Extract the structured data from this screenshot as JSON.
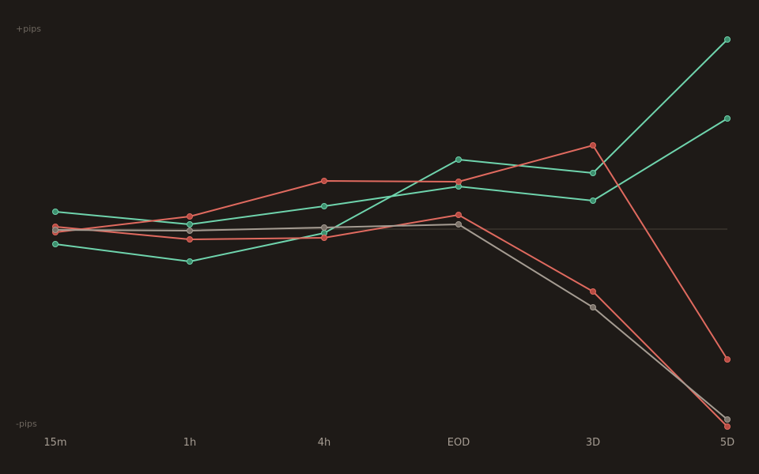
{
  "chart_data": {
    "type": "line",
    "y_axis": {
      "top_label": "+pips",
      "bottom_label": "-pips"
    },
    "x": [
      "15m",
      "1h",
      "4h",
      "EOD",
      "3D",
      "5D"
    ],
    "ylim": [
      -250,
      240
    ],
    "zero_line": 0,
    "grid": false,
    "legend": "none",
    "series": [
      {
        "color": "#6fd4ad",
        "dot_color": "#3d8f6e",
        "values": [
          22,
          6,
          29,
          54,
          36,
          140
        ]
      },
      {
        "color": "#6fd4ad",
        "dot_color": "#3d8f6e",
        "values": [
          -19,
          -41,
          -5,
          88,
          71,
          240
        ]
      },
      {
        "color": "#e06a5f",
        "dot_color": "#b84a42",
        "values": [
          -4,
          16,
          61,
          60,
          106,
          -165
        ]
      },
      {
        "color": "#e06a5f",
        "dot_color": "#b84a42",
        "values": [
          3,
          -13,
          -11,
          18,
          -79,
          -250
        ]
      },
      {
        "color": "#a59c92",
        "dot_color": "#7a7168",
        "values": [
          -1,
          -2,
          2,
          6,
          -99,
          -241
        ]
      }
    ]
  },
  "colors": {
    "background": "#1e1a17",
    "zero_line": "#3a342f"
  }
}
